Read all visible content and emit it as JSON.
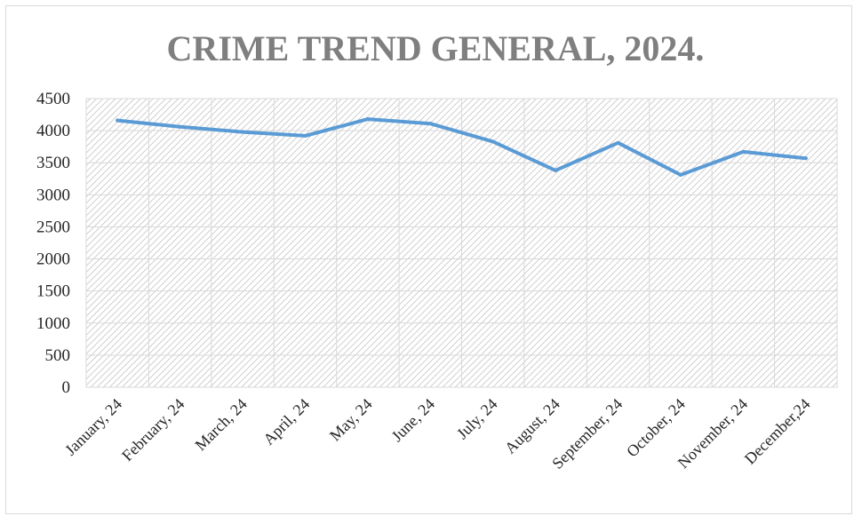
{
  "chart_data": {
    "type": "line",
    "title": "CRIME TREND GENERAL, 2024.",
    "xlabel": "",
    "ylabel": "",
    "categories": [
      "January, 24",
      "February, 24",
      "March, 24",
      "April, 24",
      "May, 24",
      "June, 24",
      "July, 24",
      "August, 24",
      "September, 24",
      "October, 24",
      "November, 24",
      "December,24"
    ],
    "y_ticks": [
      "0",
      "500",
      "1000",
      "1500",
      "2000",
      "2500",
      "3000",
      "3500",
      "4000",
      "4500"
    ],
    "ylim": [
      0,
      4500
    ],
    "series": [
      {
        "values": [
          4160,
          4060,
          3980,
          3920,
          4180,
          4110,
          3830,
          3380,
          3810,
          3310,
          3670,
          3570
        ]
      }
    ],
    "grid": true,
    "legend": "none",
    "colors": {
      "line": "#5b9bd5",
      "grid": "#d9d9d9",
      "hatch": "#c8c8c8",
      "title": "#7f7f7f"
    }
  }
}
